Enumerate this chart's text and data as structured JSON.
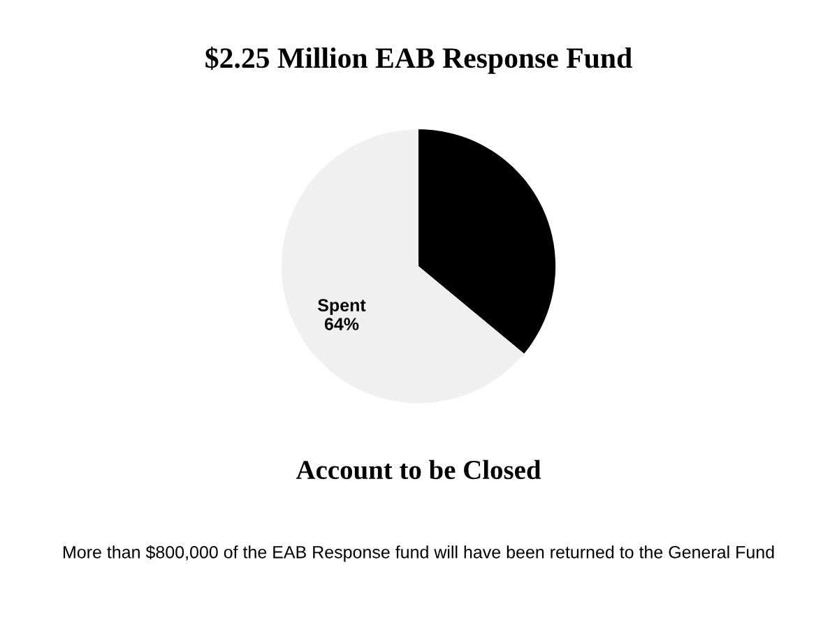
{
  "chart_data": {
    "type": "pie",
    "title": "$2.25 Million EAB Response Fund",
    "categories": [
      null,
      "Spent"
    ],
    "values": [
      36,
      64
    ],
    "colors": [
      "#000000",
      "#f0f0f0"
    ],
    "value_labels": [
      null,
      "64%"
    ],
    "annotations": [
      "Account to be Closed",
      "More than $800,000 of the EAB Response fund will have been returned to the General Fund"
    ]
  }
}
